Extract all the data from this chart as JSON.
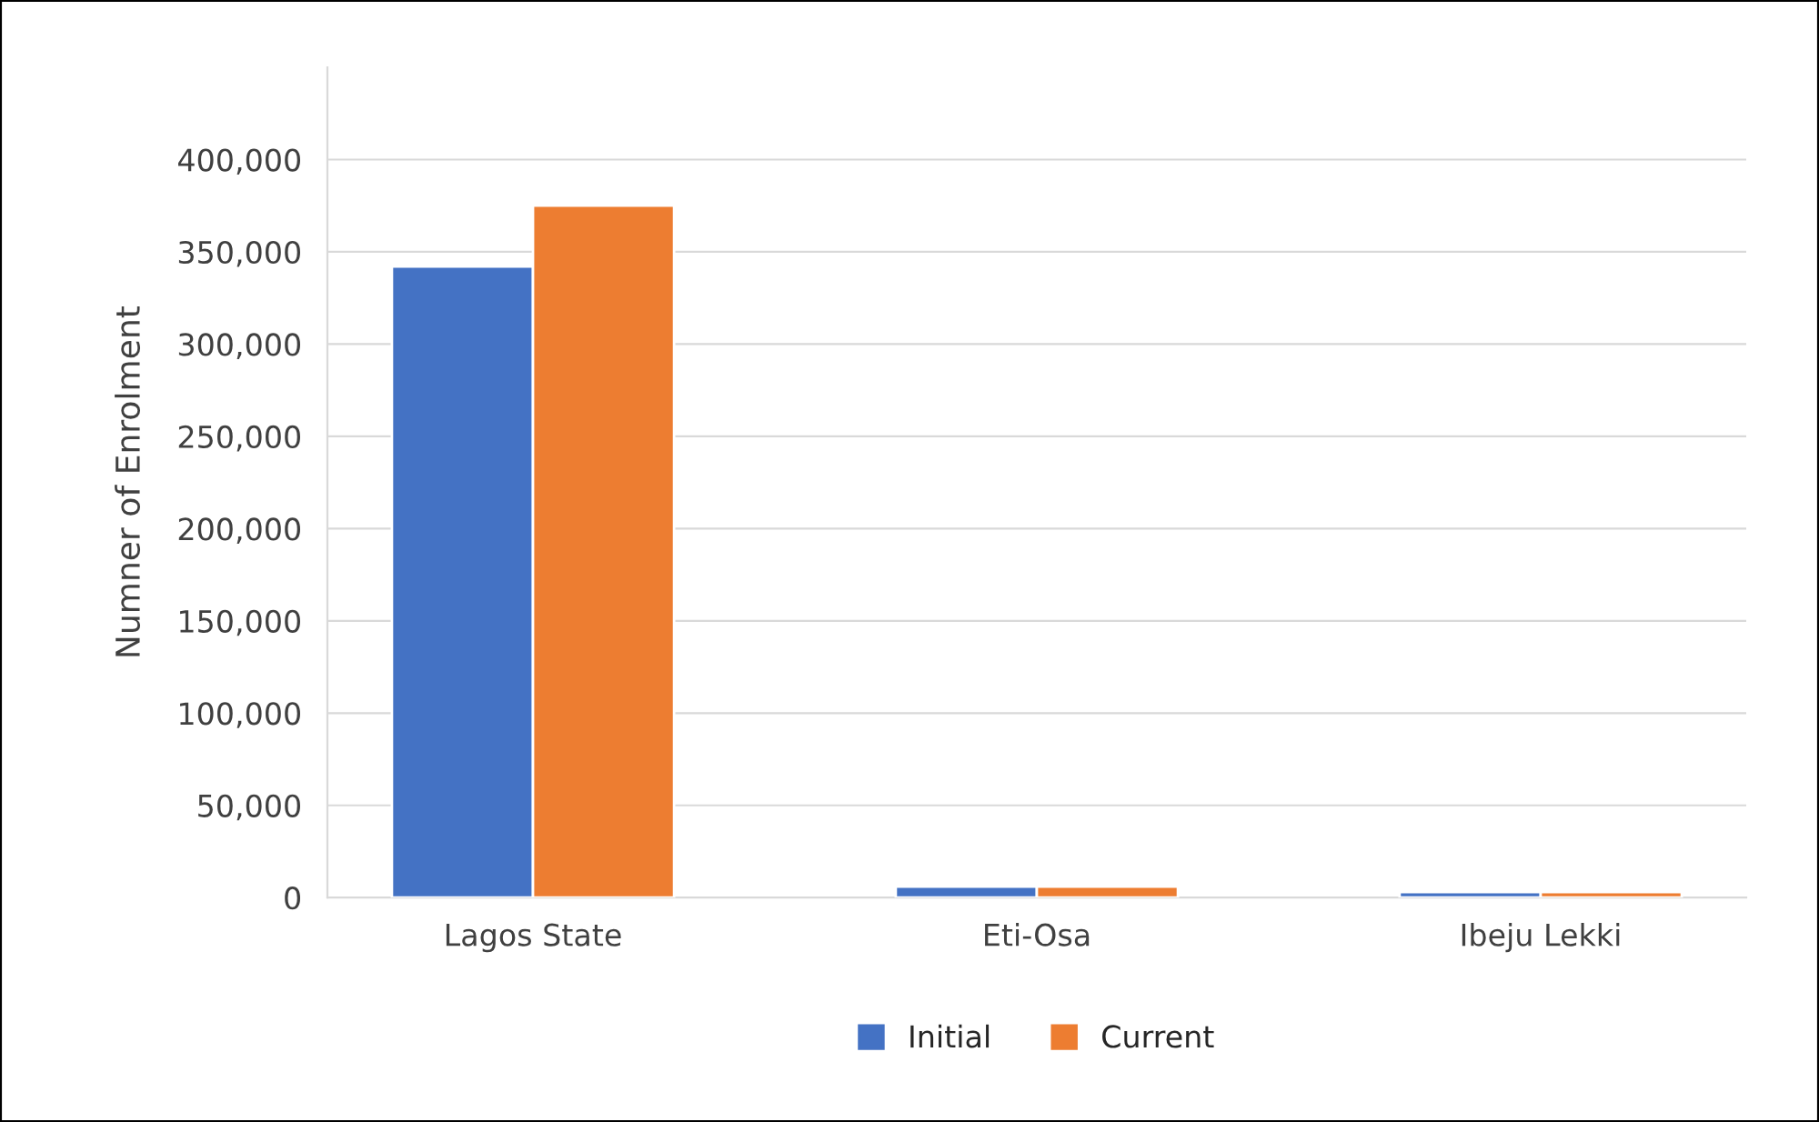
{
  "chart_data": {
    "type": "bar",
    "ylabel": "Numner of Enrolment",
    "categories": [
      "Lagos State",
      "Eti-Osa",
      "Ibeju Lekki"
    ],
    "series": [
      {
        "name": "Initial",
        "color": "#4472c4",
        "values": [
          342000,
          6000,
          3000
        ]
      },
      {
        "name": "Current",
        "color": "#ed7d31",
        "values": [
          375000,
          6000,
          3000
        ]
      }
    ],
    "ylim": [
      0,
      450000
    ],
    "yticks": [
      0,
      {
        "value": 50000,
        "label": "50,000"
      },
      {
        "value": 100000,
        "label": "100,000"
      },
      {
        "value": 150000,
        "label": "150,000"
      },
      {
        "value": 200000,
        "label": "200,000"
      },
      {
        "value": 250000,
        "label": "250,000"
      },
      {
        "value": 300000,
        "label": "300,000"
      },
      {
        "value": 350000,
        "label": "350,000"
      },
      {
        "value": 400000,
        "label": "400,000"
      }
    ],
    "grid": "y",
    "legend": "bottom"
  }
}
